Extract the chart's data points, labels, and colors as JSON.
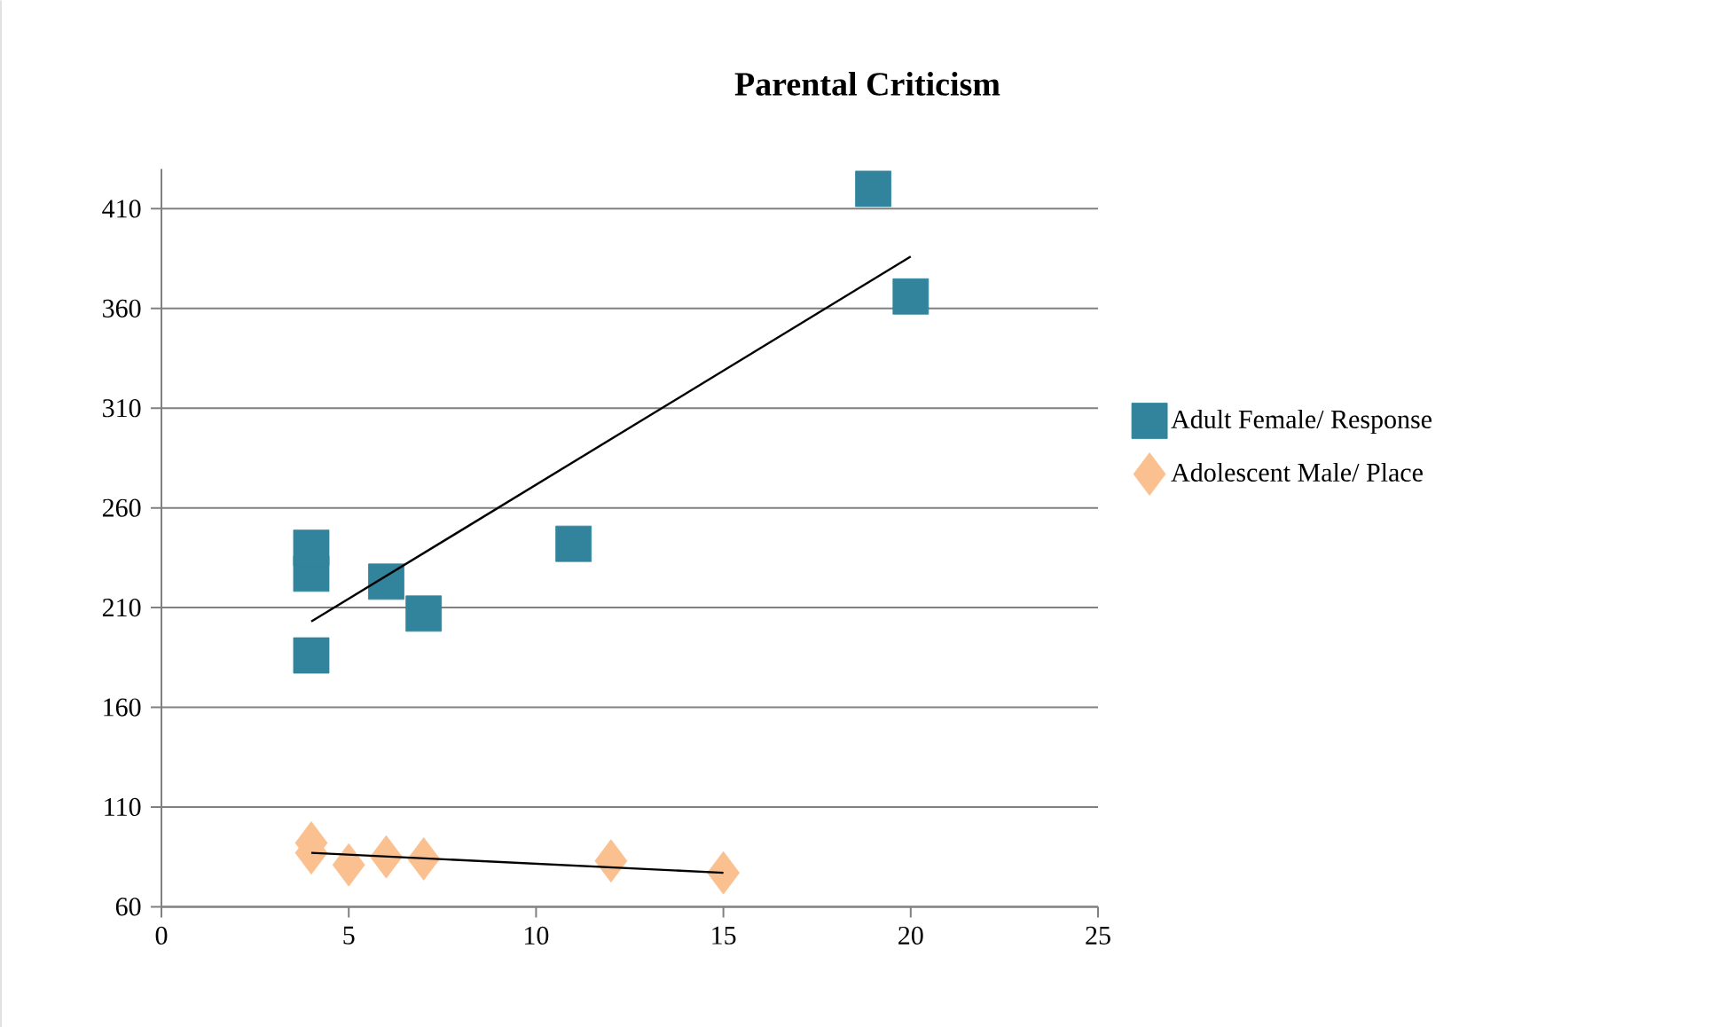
{
  "chart_data": {
    "type": "scatter",
    "title": "Parental Criticism",
    "xlim": [
      0,
      25
    ],
    "xticks": [
      0,
      5,
      10,
      15,
      20,
      25
    ],
    "ylim": [
      60,
      430
    ],
    "yticks": [
      60,
      110,
      160,
      210,
      260,
      310,
      360,
      410
    ],
    "grid": "y",
    "legend": "right",
    "series": [
      {
        "name": "Adult Female/ Response",
        "color": "#31849b",
        "marker": "square",
        "x": [
          4,
          4,
          4,
          6,
          7,
          11,
          19,
          20
        ],
        "values": [
          186,
          227,
          240,
          223,
          207,
          242,
          420,
          366
        ]
      },
      {
        "name": "Adolescent Male/ Place",
        "color": "#fac090",
        "marker": "diamond",
        "x": [
          4,
          4,
          5,
          6,
          7,
          12,
          15
        ],
        "values": [
          92,
          87,
          81,
          85,
          84,
          83,
          77
        ]
      },
      {
        "type": "line",
        "color": "#000000",
        "marker": "none",
        "x": [
          4,
          20
        ],
        "values": [
          203,
          386
        ]
      },
      {
        "type": "line",
        "color": "#000000",
        "marker": "none",
        "x": [
          4,
          15
        ],
        "values": [
          87,
          77
        ]
      }
    ]
  }
}
